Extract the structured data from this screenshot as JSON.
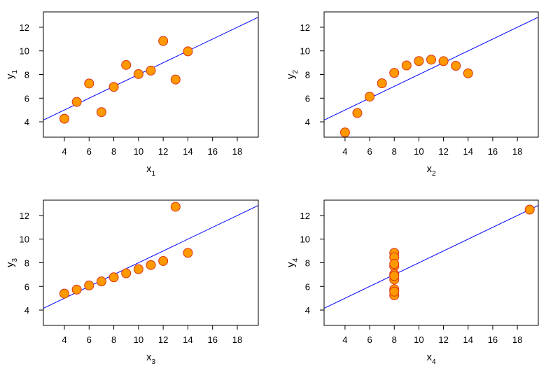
{
  "figure": {
    "background": "#ffffff",
    "point_fill": "#ff9900",
    "point_stroke": "#d9331a",
    "fit_line_color": "#0000ff"
  },
  "chart_data": [
    {
      "type": "scatter",
      "xlabel": "x",
      "xlabel_sub": "1",
      "ylabel": "y",
      "ylabel_sub": "1",
      "xlim": [
        2.3,
        19.7
      ],
      "ylim": [
        2.7,
        13.3
      ],
      "xticks": [
        4,
        6,
        8,
        10,
        12,
        14,
        16,
        18
      ],
      "yticks": [
        4,
        6,
        8,
        10,
        12
      ],
      "x": [
        10,
        8,
        13,
        9,
        11,
        14,
        6,
        4,
        12,
        7,
        5
      ],
      "y": [
        8.04,
        6.95,
        7.58,
        8.81,
        8.33,
        9.96,
        7.24,
        4.26,
        10.84,
        4.82,
        5.68
      ],
      "fit_line": {
        "intercept": 3.0,
        "slope": 0.5
      },
      "grid": false
    },
    {
      "type": "scatter",
      "xlabel": "x",
      "xlabel_sub": "2",
      "ylabel": "y",
      "ylabel_sub": "2",
      "xlim": [
        2.3,
        19.7
      ],
      "ylim": [
        2.7,
        13.3
      ],
      "xticks": [
        4,
        6,
        8,
        10,
        12,
        14,
        16,
        18
      ],
      "yticks": [
        4,
        6,
        8,
        10,
        12
      ],
      "x": [
        10,
        8,
        13,
        9,
        11,
        14,
        6,
        4,
        12,
        7,
        5
      ],
      "y": [
        9.14,
        8.14,
        8.74,
        8.77,
        9.26,
        8.1,
        6.13,
        3.1,
        9.13,
        7.26,
        4.74
      ],
      "fit_line": {
        "intercept": 3.0,
        "slope": 0.5
      },
      "grid": false
    },
    {
      "type": "scatter",
      "xlabel": "x",
      "xlabel_sub": "3",
      "ylabel": "y",
      "ylabel_sub": "3",
      "xlim": [
        2.3,
        19.7
      ],
      "ylim": [
        2.7,
        13.3
      ],
      "xticks": [
        4,
        6,
        8,
        10,
        12,
        14,
        16,
        18
      ],
      "yticks": [
        4,
        6,
        8,
        10,
        12
      ],
      "x": [
        10,
        8,
        13,
        9,
        11,
        14,
        6,
        4,
        12,
        7,
        5
      ],
      "y": [
        7.46,
        6.77,
        12.74,
        7.11,
        7.81,
        8.84,
        6.08,
        5.39,
        8.15,
        6.42,
        5.73
      ],
      "fit_line": {
        "intercept": 3.0,
        "slope": 0.5
      },
      "grid": false
    },
    {
      "type": "scatter",
      "xlabel": "x",
      "xlabel_sub": "4",
      "ylabel": "y",
      "ylabel_sub": "4",
      "xlim": [
        2.3,
        19.7
      ],
      "ylim": [
        2.7,
        13.3
      ],
      "xticks": [
        4,
        6,
        8,
        10,
        12,
        14,
        16,
        18
      ],
      "yticks": [
        4,
        6,
        8,
        10,
        12
      ],
      "x": [
        8,
        8,
        8,
        8,
        8,
        8,
        8,
        19,
        8,
        8,
        8
      ],
      "y": [
        6.58,
        5.76,
        7.71,
        8.84,
        8.47,
        7.04,
        5.25,
        12.5,
        5.56,
        7.91,
        6.89
      ],
      "fit_line": {
        "intercept": 3.0,
        "slope": 0.5
      },
      "grid": false
    }
  ]
}
